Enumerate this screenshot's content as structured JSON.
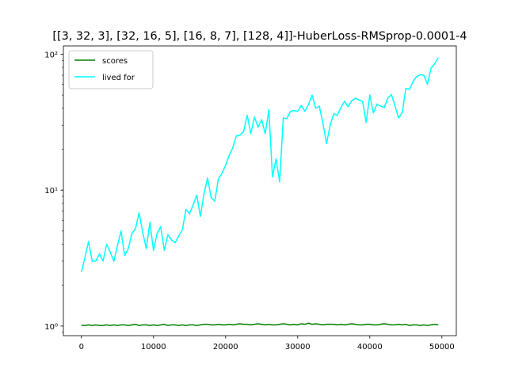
{
  "chart_data": {
    "type": "line",
    "title": "[[3, 32, 3], [32, 16, 5], [16, 8, 7], [128, 4]]-HuberLoss-RMSprop-0.0001-4",
    "xlabel": "",
    "ylabel": "",
    "xlim": [
      -2500,
      52000
    ],
    "ylim": [
      0.85,
      115
    ],
    "yscale": "log",
    "grid": false,
    "legend_position": "upper-left",
    "xticks": [
      0,
      10000,
      20000,
      30000,
      40000,
      50000
    ],
    "xtick_labels": [
      "0",
      "10000",
      "20000",
      "30000",
      "40000",
      "50000"
    ],
    "yticks": [
      1,
      10,
      100
    ],
    "ytick_labels": [
      "10⁰",
      "10¹",
      "10²"
    ],
    "series": [
      {
        "name": "scores",
        "color": "#008000",
        "x": [
          0,
          500,
          1000,
          1500,
          2000,
          2500,
          3000,
          3500,
          4000,
          4500,
          5000,
          5500,
          6000,
          6500,
          7000,
          7500,
          8000,
          8500,
          9000,
          9500,
          10000,
          10500,
          11000,
          11500,
          12000,
          12500,
          13000,
          13500,
          14000,
          14500,
          15000,
          15500,
          16000,
          16500,
          17000,
          17500,
          18000,
          18500,
          19000,
          19500,
          20000,
          20500,
          21000,
          21500,
          22000,
          22500,
          23000,
          23500,
          24000,
          24500,
          25000,
          25500,
          26000,
          26500,
          27000,
          27500,
          28000,
          28500,
          29000,
          29500,
          30000,
          30500,
          31000,
          31500,
          32000,
          32500,
          33000,
          33500,
          34000,
          34500,
          35000,
          35500,
          36000,
          36500,
          37000,
          37500,
          38000,
          38500,
          39000,
          39500,
          40000,
          40500,
          41000,
          41500,
          42000,
          42500,
          43000,
          43500,
          44000,
          44500,
          45000,
          45500,
          46000,
          46500,
          47000,
          47500,
          48000,
          48500,
          49000,
          49500
        ],
        "values": [
          1.01,
          1.01,
          1.02,
          1.01,
          1.02,
          1.01,
          1.01,
          1.02,
          1.01,
          1.02,
          1.01,
          1.02,
          1.02,
          1.01,
          1.02,
          1.03,
          1.01,
          1.02,
          1.02,
          1.01,
          1.02,
          1.01,
          1.02,
          1.03,
          1.01,
          1.02,
          1.02,
          1.01,
          1.02,
          1.01,
          1.02,
          1.02,
          1.01,
          1.02,
          1.03,
          1.03,
          1.02,
          1.02,
          1.03,
          1.02,
          1.02,
          1.03,
          1.02,
          1.03,
          1.04,
          1.03,
          1.03,
          1.02,
          1.03,
          1.04,
          1.03,
          1.02,
          1.03,
          1.02,
          1.02,
          1.03,
          1.04,
          1.03,
          1.02,
          1.03,
          1.02,
          1.04,
          1.03,
          1.05,
          1.03,
          1.04,
          1.03,
          1.02,
          1.03,
          1.03,
          1.03,
          1.02,
          1.03,
          1.02,
          1.03,
          1.04,
          1.03,
          1.02,
          1.02,
          1.03,
          1.03,
          1.02,
          1.02,
          1.03,
          1.04,
          1.03,
          1.02,
          1.02,
          1.03,
          1.02,
          1.03,
          1.01,
          1.02,
          1.02,
          1.01,
          1.02,
          1.01,
          1.02,
          1.03,
          1.02
        ]
      },
      {
        "name": "lived for",
        "color": "#00ffff",
        "x": [
          0,
          500,
          1000,
          1500,
          2000,
          2500,
          3000,
          3500,
          4000,
          4500,
          5000,
          5500,
          6000,
          6500,
          7000,
          7500,
          8000,
          8500,
          9000,
          9500,
          10000,
          10500,
          11000,
          11500,
          12000,
          12500,
          13000,
          13500,
          14000,
          14500,
          15000,
          15500,
          16000,
          16500,
          17000,
          17500,
          18000,
          18500,
          19000,
          19500,
          20000,
          20500,
          21000,
          21500,
          22000,
          22500,
          23000,
          23500,
          24000,
          24500,
          25000,
          25500,
          26000,
          26500,
          27000,
          27500,
          28000,
          28500,
          29000,
          29500,
          30000,
          30500,
          31000,
          31500,
          32000,
          32500,
          33000,
          33500,
          34000,
          34500,
          35000,
          35500,
          36000,
          36500,
          37000,
          37500,
          38000,
          38500,
          39000,
          39500,
          40000,
          40500,
          41000,
          41500,
          42000,
          42500,
          43000,
          43500,
          44000,
          44500,
          45000,
          45500,
          46000,
          46500,
          47000,
          47500,
          48000,
          48500,
          49000,
          49500
        ],
        "values": [
          2.5,
          3.2,
          4.2,
          3.0,
          3.0,
          3.4,
          3.0,
          4.0,
          3.5,
          3.0,
          3.9,
          5.0,
          3.3,
          3.7,
          4.8,
          5.2,
          6.8,
          4.9,
          3.7,
          5.8,
          3.6,
          4.8,
          5.4,
          3.6,
          4.7,
          4.3,
          4.1,
          4.6,
          5.1,
          7.2,
          6.7,
          7.8,
          9.2,
          6.4,
          9.4,
          12.3,
          8.8,
          8.3,
          12.1,
          13.3,
          15.2,
          18.0,
          20.5,
          25.2,
          25.3,
          27.0,
          35.6,
          26.0,
          34.5,
          29.0,
          33.0,
          26.0,
          39.0,
          12.5,
          17.0,
          11.5,
          34.0,
          33.5,
          38.0,
          38.5,
          38.0,
          42.0,
          38.0,
          42.5,
          50.0,
          40.0,
          41.5,
          31.0,
          22.0,
          30.0,
          36.5,
          35.5,
          40.5,
          45.0,
          41.0,
          45.5,
          47.5,
          46.0,
          45.0,
          31.5,
          50.0,
          37.0,
          43.0,
          41.5,
          40.5,
          47.5,
          50.5,
          41.5,
          34.0,
          37.0,
          56.0,
          55.0,
          63.0,
          68.5,
          70.5,
          70.0,
          60.0,
          79.0,
          85.0,
          94.0
        ]
      }
    ]
  }
}
